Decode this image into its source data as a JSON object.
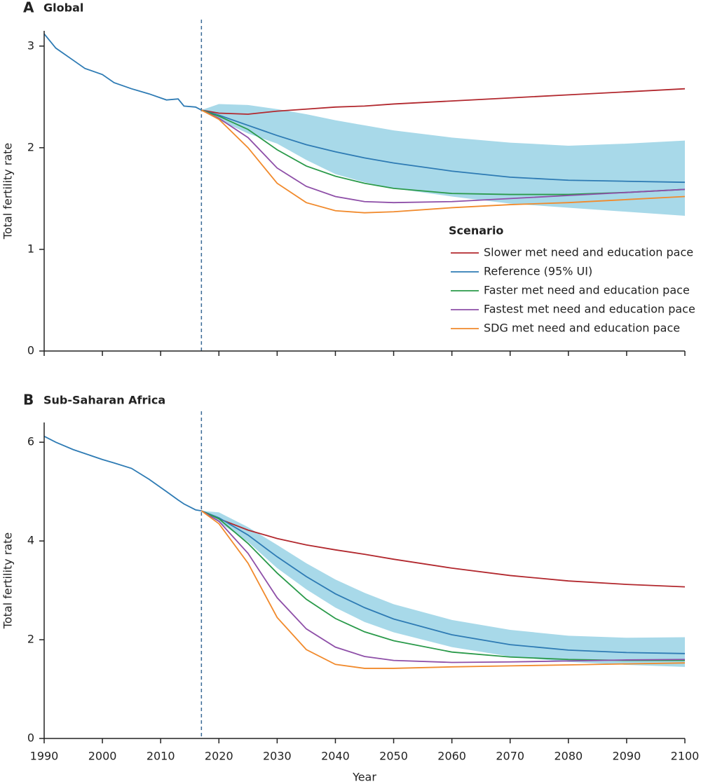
{
  "chart_data": [
    {
      "type": "line",
      "panel": "A",
      "title": "Global",
      "ylabel": "Total fertility rate",
      "x": [
        1990,
        1992,
        1995,
        1997,
        2000,
        2002,
        2005,
        2008,
        2011,
        2013,
        2014,
        2016,
        2017,
        2020,
        2025,
        2030,
        2035,
        2040,
        2045,
        2050,
        2060,
        2070,
        2080,
        2090,
        2100
      ],
      "xlim": [
        1990,
        2100
      ],
      "xticks": [
        1990,
        2000,
        2010,
        2020,
        2030,
        2040,
        2050,
        2060,
        2070,
        2080,
        2090,
        2100
      ],
      "tick_labels": false,
      "ylim": [
        0,
        3.15
      ],
      "yticks": [
        0,
        1,
        2,
        3
      ],
      "vline": 2017,
      "legend": "right",
      "legend_title": "Scenario",
      "band_color": "#a8d9e9",
      "series": [
        {
          "name": "Slower met need and education pace",
          "color": "#b2282e",
          "values": [
            null,
            null,
            null,
            null,
            null,
            null,
            null,
            null,
            null,
            null,
            null,
            null,
            2.37,
            2.34,
            2.33,
            2.36,
            2.38,
            2.4,
            2.41,
            2.43,
            2.46,
            2.49,
            2.52,
            2.55,
            2.58
          ]
        },
        {
          "name": "Reference (95% UI)",
          "color": "#2e7bb4",
          "values": [
            3.12,
            2.98,
            2.86,
            2.78,
            2.72,
            2.64,
            2.58,
            2.53,
            2.47,
            2.48,
            2.41,
            2.4,
            2.37,
            2.32,
            2.22,
            2.12,
            2.03,
            1.96,
            1.9,
            1.85,
            1.77,
            1.71,
            1.68,
            1.67,
            1.66
          ],
          "lower": [
            null,
            null,
            null,
            null,
            null,
            null,
            null,
            null,
            null,
            null,
            null,
            null,
            2.37,
            2.27,
            2.14,
            2.04,
            1.88,
            1.74,
            1.66,
            1.6,
            1.52,
            1.45,
            1.41,
            1.37,
            1.33
          ],
          "upper": [
            null,
            null,
            null,
            null,
            null,
            null,
            null,
            null,
            null,
            null,
            null,
            null,
            2.37,
            2.43,
            2.42,
            2.38,
            2.33,
            2.27,
            2.22,
            2.17,
            2.1,
            2.05,
            2.02,
            2.04,
            2.07
          ]
        },
        {
          "name": "Faster met need and education pace",
          "color": "#2a9a4a",
          "values": [
            null,
            null,
            null,
            null,
            null,
            null,
            null,
            null,
            null,
            null,
            null,
            null,
            2.37,
            2.31,
            2.18,
            1.98,
            1.82,
            1.72,
            1.65,
            1.6,
            1.55,
            1.54,
            1.54,
            1.56,
            1.59
          ]
        },
        {
          "name": "Fastest met need and education pace",
          "color": "#8e4fa8",
          "values": [
            null,
            null,
            null,
            null,
            null,
            null,
            null,
            null,
            null,
            null,
            null,
            null,
            2.37,
            2.29,
            2.1,
            1.8,
            1.62,
            1.52,
            1.47,
            1.46,
            1.47,
            1.5,
            1.53,
            1.56,
            1.59
          ]
        },
        {
          "name": "SDG met need and education pace",
          "color": "#f18a2c",
          "values": [
            null,
            null,
            null,
            null,
            null,
            null,
            null,
            null,
            null,
            null,
            null,
            null,
            2.37,
            2.28,
            2.0,
            1.65,
            1.46,
            1.38,
            1.36,
            1.37,
            1.41,
            1.44,
            1.46,
            1.49,
            1.52
          ]
        }
      ]
    },
    {
      "type": "line",
      "panel": "B",
      "title": "Sub-Saharan Africa",
      "ylabel": "Total fertility rate",
      "xlabel": "Year",
      "x": [
        1990,
        1992,
        1995,
        1997,
        2000,
        2002,
        2005,
        2008,
        2011,
        2013,
        2014,
        2016,
        2017,
        2020,
        2025,
        2030,
        2035,
        2040,
        2045,
        2050,
        2060,
        2070,
        2080,
        2090,
        2100
      ],
      "xlim": [
        1990,
        2100
      ],
      "xticks": [
        1990,
        2000,
        2010,
        2020,
        2030,
        2040,
        2050,
        2060,
        2070,
        2080,
        2090,
        2100
      ],
      "tick_labels": true,
      "ylim": [
        0,
        6.4
      ],
      "yticks": [
        0,
        2,
        4,
        6
      ],
      "vline": 2017,
      "band_color": "#a8d9e9",
      "series": [
        {
          "color": "#b2282e",
          "values": [
            null,
            null,
            null,
            null,
            null,
            null,
            null,
            null,
            null,
            null,
            null,
            null,
            4.61,
            4.45,
            4.22,
            4.05,
            3.92,
            3.82,
            3.73,
            3.63,
            3.45,
            3.3,
            3.19,
            3.12,
            3.07
          ]
        },
        {
          "color": "#2e7bb4",
          "values": [
            6.12,
            6.0,
            5.85,
            5.77,
            5.65,
            5.58,
            5.47,
            5.25,
            5.0,
            4.83,
            4.75,
            4.63,
            4.61,
            4.47,
            4.12,
            3.68,
            3.28,
            2.93,
            2.65,
            2.42,
            2.1,
            1.9,
            1.79,
            1.74,
            1.72
          ],
          "lower": [
            null,
            null,
            null,
            null,
            null,
            null,
            null,
            null,
            null,
            null,
            null,
            null,
            4.61,
            4.38,
            3.98,
            3.45,
            3.02,
            2.65,
            2.36,
            2.15,
            1.85,
            1.66,
            1.55,
            1.49,
            1.45
          ],
          "upper": [
            null,
            null,
            null,
            null,
            null,
            null,
            null,
            null,
            null,
            null,
            null,
            null,
            4.61,
            4.58,
            4.28,
            3.92,
            3.55,
            3.22,
            2.95,
            2.72,
            2.4,
            2.2,
            2.08,
            2.04,
            2.05
          ]
        },
        {
          "color": "#2a9a4a",
          "values": [
            null,
            null,
            null,
            null,
            null,
            null,
            null,
            null,
            null,
            null,
            null,
            null,
            4.61,
            4.45,
            3.95,
            3.35,
            2.82,
            2.43,
            2.16,
            1.98,
            1.75,
            1.65,
            1.6,
            1.58,
            1.58
          ]
        },
        {
          "color": "#8e4fa8",
          "values": [
            null,
            null,
            null,
            null,
            null,
            null,
            null,
            null,
            null,
            null,
            null,
            null,
            4.61,
            4.4,
            3.75,
            2.85,
            2.22,
            1.85,
            1.66,
            1.58,
            1.54,
            1.55,
            1.57,
            1.59,
            1.6
          ]
        },
        {
          "color": "#f18a2c",
          "values": [
            null,
            null,
            null,
            null,
            null,
            null,
            null,
            null,
            null,
            null,
            null,
            null,
            4.61,
            4.35,
            3.55,
            2.45,
            1.8,
            1.5,
            1.42,
            1.42,
            1.45,
            1.47,
            1.49,
            1.51,
            1.53
          ]
        }
      ]
    }
  ]
}
